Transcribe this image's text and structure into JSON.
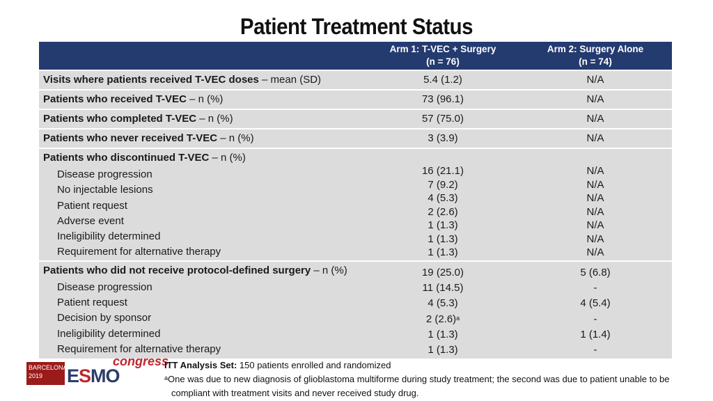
{
  "title": "Patient Treatment Status",
  "header": {
    "col1_line1": "Arm 1: T-VEC + Surgery",
    "col1_line2": "(n = 76)",
    "col2_line1": "Arm 2: Surgery Alone",
    "col2_line2": "(n = 74)"
  },
  "rows": [
    {
      "label_bold": "Visits where patients received T-VEC doses",
      "label_rest": " – mean (SD)",
      "arm1": "5.4 (1.2)",
      "arm2": "N/A"
    },
    {
      "label_bold": "Patients who received T-VEC",
      "label_rest": " – n (%)",
      "arm1": "73 (96.1)",
      "arm2": "N/A"
    },
    {
      "label_bold": "Patients who completed T-VEC",
      "label_rest": " – n (%)",
      "arm1": "57 (75.0)",
      "arm2": "N/A"
    },
    {
      "label_bold": "Patients who never received T-VEC",
      "label_rest": " – n (%)",
      "arm1": "3 (3.9)",
      "arm2": "N/A"
    }
  ],
  "discontinued": {
    "label_bold": "Patients who discontinued T-VEC",
    "label_rest": " – n (%)",
    "items": [
      {
        "label": "Disease progression",
        "arm1": "16 (21.1)",
        "arm2": "N/A"
      },
      {
        "label": "No injectable lesions",
        "arm1": "7 (9.2)",
        "arm2": "N/A"
      },
      {
        "label": "Patient request",
        "arm1": "4 (5.3)",
        "arm2": "N/A"
      },
      {
        "label": "Adverse event",
        "arm1": "2 (2.6)",
        "arm2": "N/A"
      },
      {
        "label": "Ineligibility determined",
        "arm1": "1 (1.3)",
        "arm2": "N/A"
      },
      {
        "label": "Requirement for alternative therapy",
        "arm1": "1 (1.3)",
        "arm2": "N/A"
      }
    ],
    "extra_arm1": "1 (1.3)",
    "extra_arm2": "N/A"
  },
  "no_surgery": {
    "label_bold": "Patients who did not receive protocol-defined surgery",
    "label_rest": " – n (%)",
    "total_arm1": "19 (25.0)",
    "total_arm2": "5 (6.8)",
    "items": [
      {
        "label": "Disease progression",
        "arm1": "11 (14.5)",
        "arm2": "-"
      },
      {
        "label": "Patient request",
        "arm1": "4 (5.3)",
        "arm2": "4 (5.4)"
      },
      {
        "label": "Decision by sponsor",
        "arm1": "2 (2.6)",
        "arm1_sup": "a",
        "arm2": "-"
      },
      {
        "label": "Ineligibility determined",
        "arm1": "1 (1.3)",
        "arm2": "1 (1.4)"
      },
      {
        "label": "Requirement for alternative therapy",
        "arm1": "1 (1.3)",
        "arm2": "-"
      }
    ]
  },
  "logo": {
    "city_line1": "BARCELONA",
    "city_line2": "2019",
    "esmo_e": "E",
    "esmo_s": "S",
    "esmo_mo": "MO",
    "congress": "congress"
  },
  "footer": {
    "itt_bold": "ITT Analysis Set:",
    "itt_rest": " 150 patients enrolled and randomized",
    "note_sup": "a",
    "note_text": "One was due to new diagnosis of glioblastoma multiforme during study treatment; the second was due to patient unable to be compliant with treatment visits and never received study drug."
  },
  "colors": {
    "header_bg": "#243b70",
    "row_bg": "#dcdcdc",
    "brand_red": "#c0262d"
  }
}
